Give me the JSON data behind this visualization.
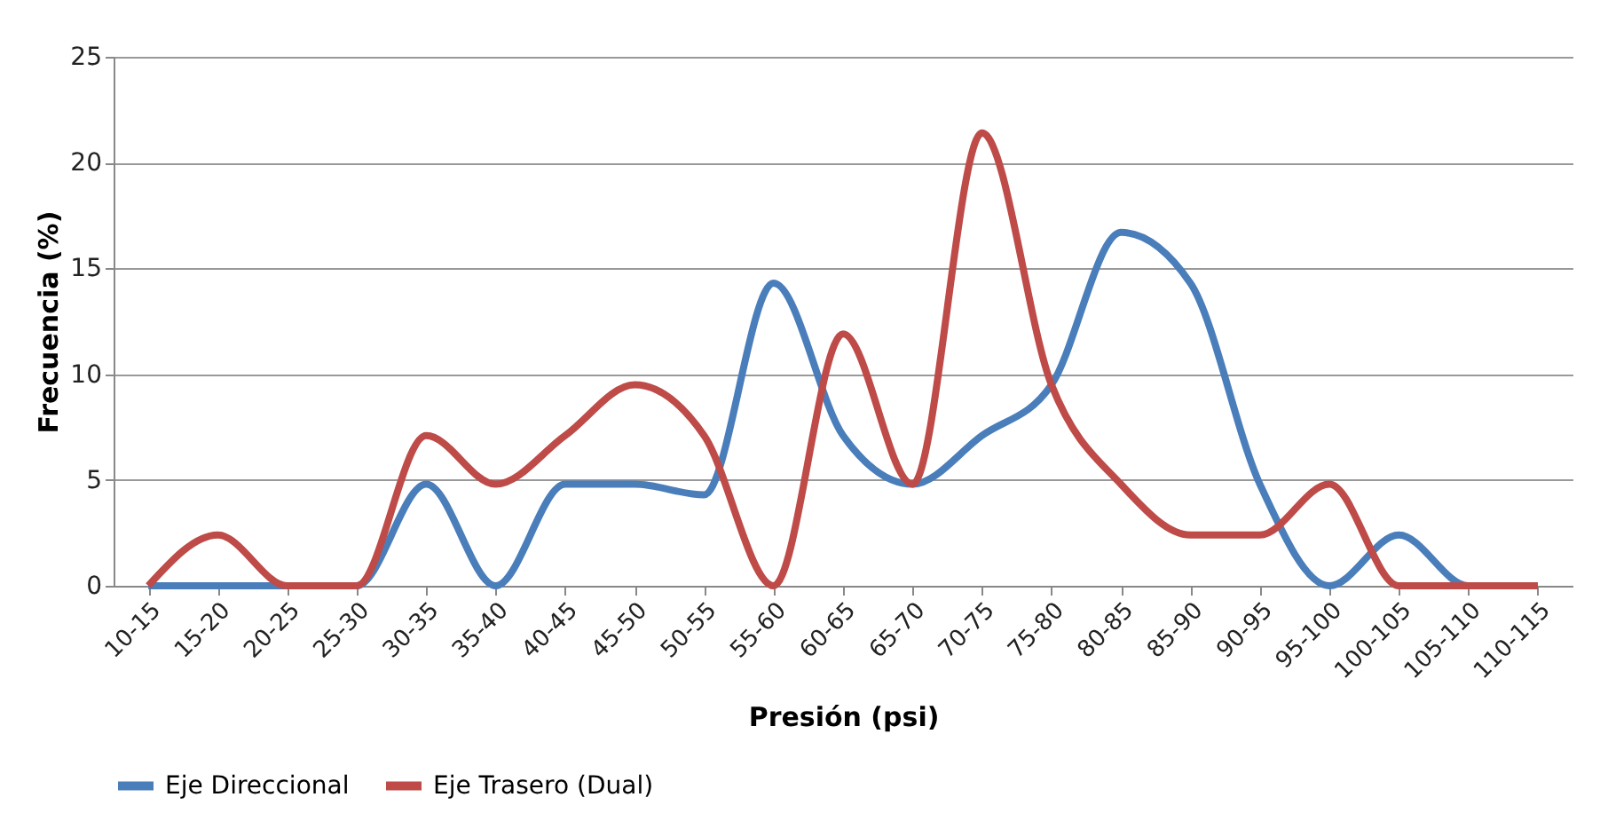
{
  "chart_data": {
    "type": "line",
    "xlabel": "Presión (psi)",
    "ylabel": "Frecuencia (%)",
    "categories": [
      "10-15",
      "15-20",
      "20-25",
      "25-30",
      "30-35",
      "35-40",
      "40-45",
      "45-50",
      "50-55",
      "55-60",
      "60-65",
      "65-70",
      "70-75",
      "75-80",
      "80-85",
      "85-90",
      "90-95",
      "95-100",
      "100-105",
      "105-110",
      "110-115"
    ],
    "series": [
      {
        "name": "Eje Direccional",
        "color": "#4a7ebb",
        "values": [
          0,
          0,
          0,
          0,
          4.8,
          0,
          4.8,
          4.8,
          4.3,
          14.3,
          7.1,
          4.8,
          7.1,
          9.5,
          16.7,
          14.3,
          4.8,
          0,
          2.4,
          0,
          0
        ]
      },
      {
        "name": "Eje Trasero (Dual)",
        "color": "#be4b48",
        "values": [
          0,
          2.4,
          0,
          0,
          7.1,
          4.8,
          7.1,
          9.5,
          7.1,
          0,
          11.9,
          4.8,
          21.4,
          9.5,
          4.8,
          2.4,
          2.4,
          4.8,
          0,
          0,
          0
        ]
      }
    ],
    "ylim": [
      0,
      25
    ],
    "yticks": [
      0,
      5,
      10,
      15,
      20,
      25
    ],
    "grid": "y",
    "legend": "bottom",
    "marker": "none",
    "line_style": "solid"
  }
}
